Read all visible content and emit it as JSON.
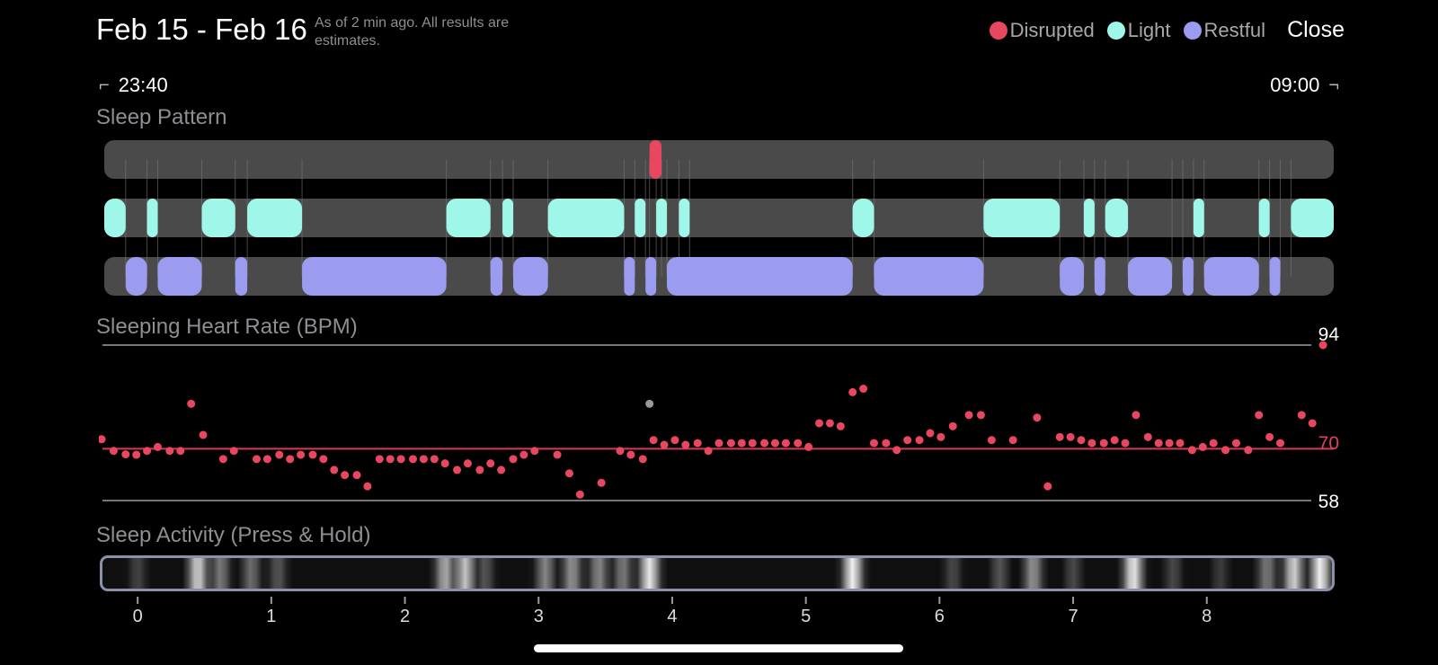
{
  "header": {
    "date_range": "Feb 15 - Feb 16",
    "as_of": "As of 2 min ago. All results are estimates.",
    "close_label": "Close"
  },
  "legend": [
    {
      "label": "Disrupted",
      "color": "#e8475f"
    },
    {
      "label": "Light",
      "color": "#9ef7e8"
    },
    {
      "label": "Restful",
      "color": "#9b9bf0"
    }
  ],
  "timeline": {
    "start_time": "23:40",
    "end_time": "09:00",
    "start_hour": -0.25,
    "end_hour": 8.95,
    "axis_ticks": [
      "0",
      "1",
      "2",
      "3",
      "4",
      "5",
      "6",
      "7",
      "8"
    ]
  },
  "sleep_pattern": {
    "title": "Sleep Pattern",
    "track_color": "#4a4a4a",
    "disrupted": [
      [
        3.83,
        3.92
      ]
    ],
    "light": [
      [
        -0.25,
        -0.09
      ],
      [
        0.07,
        0.15
      ],
      [
        0.48,
        0.73
      ],
      [
        0.82,
        1.23
      ],
      [
        2.31,
        2.64
      ],
      [
        2.73,
        2.81
      ],
      [
        3.07,
        3.64
      ],
      [
        3.72,
        3.8
      ],
      [
        3.88,
        3.96
      ],
      [
        4.05,
        4.13
      ],
      [
        5.35,
        5.51
      ],
      [
        6.33,
        6.9
      ],
      [
        7.08,
        7.16
      ],
      [
        7.24,
        7.41
      ],
      [
        7.9,
        7.98
      ],
      [
        8.39,
        8.47
      ],
      [
        8.63,
        8.95
      ]
    ],
    "restful": [
      [
        -0.09,
        0.07
      ],
      [
        0.15,
        0.48
      ],
      [
        0.73,
        0.82
      ],
      [
        1.23,
        2.31
      ],
      [
        2.64,
        2.73
      ],
      [
        2.81,
        3.07
      ],
      [
        3.64,
        3.72
      ],
      [
        3.8,
        3.88
      ],
      [
        3.96,
        5.35
      ],
      [
        5.51,
        6.33
      ],
      [
        6.9,
        7.08
      ],
      [
        7.16,
        7.24
      ],
      [
        7.41,
        7.74
      ],
      [
        7.82,
        7.9
      ],
      [
        7.98,
        8.39
      ],
      [
        8.47,
        8.55
      ]
    ]
  },
  "heart_rate": {
    "title": "Sleeping Heart Rate (BPM)",
    "max_label": "94",
    "avg_label": "70",
    "min_label": "58",
    "max": 94,
    "avg": 70,
    "min": 58,
    "dot_color": "#e8475f",
    "outlier_color": "#9a9a9a",
    "points": [
      [
        -0.27,
        72.2
      ],
      [
        -0.18,
        69.5
      ],
      [
        -0.09,
        68.7
      ],
      [
        -0.01,
        68.6
      ],
      [
        0.07,
        69.5
      ],
      [
        0.15,
        70.4
      ],
      [
        0.24,
        69.5
      ],
      [
        0.32,
        69.5
      ],
      [
        0.4,
        80.4
      ],
      [
        0.49,
        73.2
      ],
      [
        0.64,
        67.6
      ],
      [
        0.72,
        69.5
      ],
      [
        0.89,
        67.6
      ],
      [
        0.97,
        67.6
      ],
      [
        1.06,
        68.6
      ],
      [
        1.14,
        67.6
      ],
      [
        1.22,
        68.6
      ],
      [
        1.31,
        68.6
      ],
      [
        1.39,
        67.6
      ],
      [
        1.47,
        65.1
      ],
      [
        1.55,
        63.9
      ],
      [
        1.64,
        63.9
      ],
      [
        1.72,
        61.3
      ],
      [
        1.81,
        67.6
      ],
      [
        1.89,
        67.6
      ],
      [
        1.97,
        67.6
      ],
      [
        2.06,
        67.6
      ],
      [
        2.14,
        67.6
      ],
      [
        2.22,
        67.6
      ],
      [
        2.3,
        66.6
      ],
      [
        2.39,
        65.1
      ],
      [
        2.47,
        66.6
      ],
      [
        2.56,
        65.1
      ],
      [
        2.64,
        66.6
      ],
      [
        2.72,
        65.1
      ],
      [
        2.81,
        67.6
      ],
      [
        2.89,
        68.6
      ],
      [
        2.97,
        69.5
      ],
      [
        3.14,
        68.6
      ],
      [
        3.23,
        64.3
      ],
      [
        3.31,
        59.4
      ],
      [
        3.47,
        62.1
      ],
      [
        3.61,
        69.5
      ],
      [
        3.69,
        68.6
      ],
      [
        3.78,
        67.6
      ],
      [
        3.86,
        72.0
      ],
      [
        3.94,
        70.9
      ],
      [
        4.02,
        72.0
      ],
      [
        4.1,
        70.9
      ],
      [
        4.19,
        71.3
      ],
      [
        4.27,
        69.5
      ],
      [
        4.35,
        71.3
      ],
      [
        4.44,
        71.3
      ],
      [
        4.52,
        71.3
      ],
      [
        4.6,
        71.3
      ],
      [
        4.69,
        71.3
      ],
      [
        4.77,
        71.3
      ],
      [
        4.85,
        71.3
      ],
      [
        4.94,
        71.3
      ],
      [
        5.02,
        70.4
      ],
      [
        5.1,
        75.9
      ],
      [
        5.18,
        75.9
      ],
      [
        5.26,
        75.2
      ],
      [
        5.35,
        83.1
      ],
      [
        5.43,
        83.9
      ],
      [
        5.51,
        71.3
      ],
      [
        5.6,
        71.3
      ],
      [
        5.68,
        69.7
      ],
      [
        5.76,
        72.0
      ],
      [
        5.85,
        72.0
      ],
      [
        5.93,
        73.6
      ],
      [
        6.01,
        72.7
      ],
      [
        6.1,
        75.2
      ],
      [
        6.22,
        77.8
      ],
      [
        6.31,
        77.8
      ],
      [
        6.39,
        72.0
      ],
      [
        6.55,
        72.0
      ],
      [
        6.73,
        77.2
      ],
      [
        6.81,
        61.3
      ],
      [
        6.9,
        72.7
      ],
      [
        6.98,
        72.7
      ],
      [
        7.06,
        72.0
      ],
      [
        7.14,
        71.3
      ],
      [
        7.23,
        71.3
      ],
      [
        7.31,
        72.0
      ],
      [
        7.39,
        71.3
      ],
      [
        7.47,
        77.8
      ],
      [
        7.56,
        72.7
      ],
      [
        7.64,
        71.3
      ],
      [
        7.72,
        71.3
      ],
      [
        7.8,
        71.3
      ],
      [
        7.89,
        69.7
      ],
      [
        7.97,
        70.4
      ],
      [
        8.05,
        71.3
      ],
      [
        8.14,
        69.7
      ],
      [
        8.22,
        71.3
      ],
      [
        8.31,
        69.7
      ],
      [
        8.39,
        77.8
      ],
      [
        8.47,
        72.7
      ],
      [
        8.55,
        71.3
      ],
      [
        8.71,
        77.8
      ],
      [
        8.79,
        75.9
      ],
      [
        8.87,
        94.0
      ]
    ],
    "outliers": [
      [
        3.83,
        80.4
      ]
    ]
  },
  "activity": {
    "title": "Sleep Activity (Press & Hold)",
    "peaks": [
      [
        0.0,
        0.28
      ],
      [
        0.45,
        0.85
      ],
      [
        0.62,
        0.5
      ],
      [
        0.85,
        0.45
      ],
      [
        1.05,
        0.35
      ],
      [
        2.3,
        0.7
      ],
      [
        2.45,
        0.8
      ],
      [
        2.6,
        0.35
      ],
      [
        3.05,
        0.55
      ],
      [
        3.25,
        0.6
      ],
      [
        3.45,
        0.55
      ],
      [
        3.63,
        0.5
      ],
      [
        3.83,
        0.95
      ],
      [
        5.35,
        0.98
      ],
      [
        6.1,
        0.3
      ],
      [
        6.45,
        0.35
      ],
      [
        6.7,
        0.6
      ],
      [
        7.0,
        0.3
      ],
      [
        7.45,
        0.95
      ],
      [
        7.75,
        0.3
      ],
      [
        8.1,
        0.25
      ],
      [
        8.45,
        0.5
      ],
      [
        8.65,
        0.85
      ],
      [
        8.85,
        0.98
      ]
    ]
  }
}
